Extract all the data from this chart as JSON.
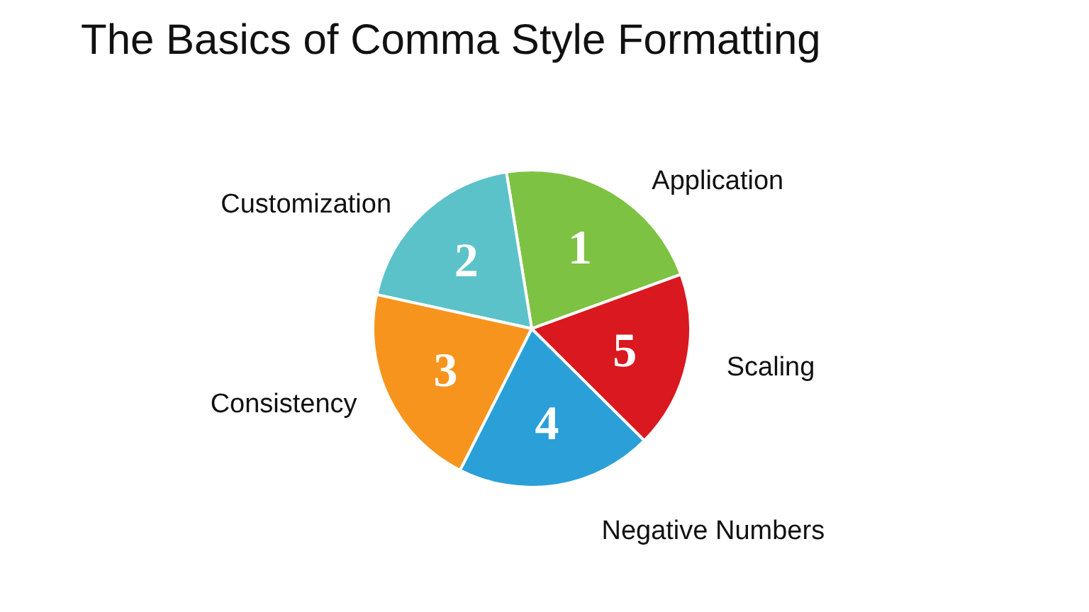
{
  "chart_data": {
    "type": "pie",
    "title": "The Basics of Comma Style Formatting",
    "categories": [
      "Application",
      "Customization",
      "Consistency",
      "Negative Numbers",
      "Scaling"
    ],
    "values": [
      22,
      19,
      21,
      20,
      18
    ],
    "colors": [
      "#7dc242",
      "#5cc2c9",
      "#f7941d",
      "#2a9fd8",
      "#d9181f"
    ],
    "annotations": [
      "1",
      "2",
      "3",
      "4",
      "5"
    ]
  }
}
